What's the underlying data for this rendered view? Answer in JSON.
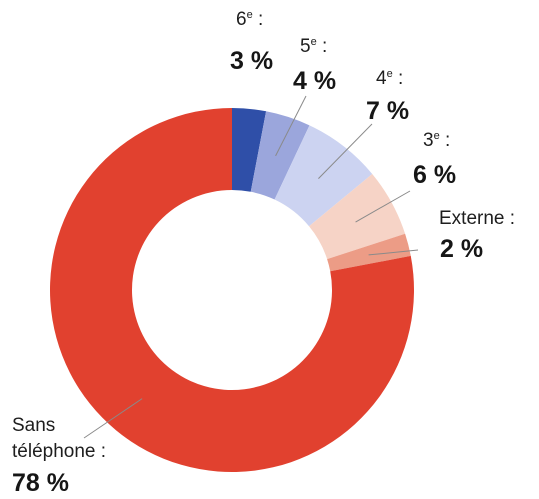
{
  "chart_data": {
    "type": "pie",
    "donut": true,
    "title": "",
    "slices": [
      {
        "label": "6",
        "sup": "e",
        "suffix": " :",
        "value": 3,
        "value_text": "3 %",
        "color": "#2f4fa8"
      },
      {
        "label": "5",
        "sup": "e",
        "suffix": " :",
        "value": 4,
        "value_text": "4 %",
        "color": "#9ba6dc"
      },
      {
        "label": "4",
        "sup": "e",
        "suffix": " :",
        "value": 7,
        "value_text": "7 %",
        "color": "#ccd3f1"
      },
      {
        "label": "3",
        "sup": "e",
        "suffix": " :",
        "value": 6,
        "value_text": "6 %",
        "color": "#f6d3c6"
      },
      {
        "label": "Externe :",
        "sup": "",
        "suffix": "",
        "value": 2,
        "value_text": "2 %",
        "color": "#ec9c86"
      },
      {
        "label": "Sans",
        "label2": "téléphone :",
        "sup": "",
        "suffix": "",
        "value": 78,
        "value_text": "78 %",
        "color": "#e1412f"
      }
    ]
  }
}
